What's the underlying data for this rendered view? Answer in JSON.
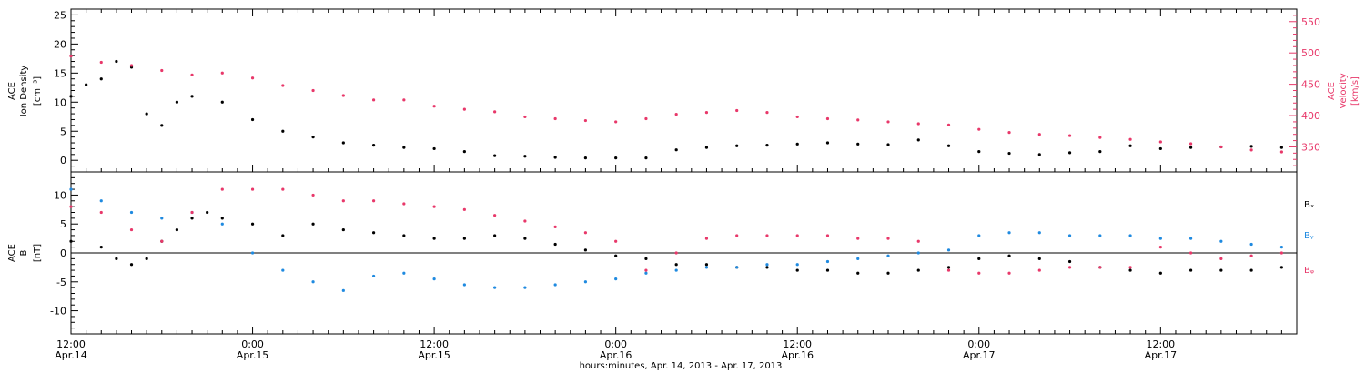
{
  "chart_data": [
    {
      "type": "scatter",
      "panel": "top",
      "ylabel_left": [
        "ACE",
        "Ion Density",
        "[cm⁻³]"
      ],
      "ylabel_right": [
        "ACE",
        "Velocity",
        "[km/s]"
      ],
      "xlim": [
        0,
        81
      ],
      "ylim_left": [
        -2,
        26
      ],
      "ylim_right": [
        310,
        570
      ],
      "yticks_left": [
        "0",
        "5",
        "10",
        "15",
        "20",
        "25"
      ],
      "yticks_right": [
        "350",
        "400",
        "450",
        "500",
        "550"
      ],
      "series": [
        {
          "axis": "left",
          "color": "#000000",
          "x": [
            0,
            1,
            2,
            3,
            4,
            5,
            6,
            7,
            8,
            10,
            12,
            14,
            16,
            18,
            20,
            22,
            24,
            26,
            28,
            30,
            32,
            34,
            36,
            38,
            40,
            42,
            44,
            46,
            48,
            50,
            52,
            54,
            56,
            58,
            60,
            62,
            64,
            66,
            68,
            70,
            72,
            74,
            76,
            78,
            80
          ],
          "y": [
            11,
            13,
            14,
            17,
            16,
            8,
            6,
            10,
            11,
            10,
            7,
            5,
            4,
            3,
            2.6,
            2.2,
            2,
            1.5,
            0.8,
            0.7,
            0.5,
            0.4,
            0.4,
            0.4,
            1.8,
            2.2,
            2.5,
            2.6,
            2.8,
            3,
            2.8,
            2.7,
            3.5,
            2.5,
            1.5,
            1.2,
            1.0,
            1.3,
            1.5,
            2.5,
            2,
            2.2,
            2.3,
            2.4,
            2.2
          ]
        },
        {
          "axis": "right",
          "color": "#e8386a",
          "x": [
            0,
            2,
            4,
            6,
            8,
            10,
            12,
            14,
            16,
            18,
            20,
            22,
            24,
            26,
            28,
            30,
            32,
            34,
            36,
            38,
            40,
            42,
            44,
            46,
            48,
            50,
            52,
            54,
            56,
            58,
            60,
            62,
            64,
            66,
            68,
            70,
            72,
            74,
            76,
            78,
            80
          ],
          "y": [
            495,
            485,
            480,
            472,
            465,
            468,
            460,
            448,
            440,
            432,
            425,
            425,
            415,
            410,
            406,
            398,
            395,
            392,
            390,
            395,
            402,
            405,
            408,
            405,
            398,
            395,
            393,
            390,
            387,
            385,
            378,
            373,
            370,
            368,
            365,
            362,
            358,
            355,
            350,
            345,
            342
          ]
        }
      ]
    },
    {
      "type": "scatter",
      "panel": "bottom",
      "ylabel_left": [
        "ACE",
        "B",
        "[nT]"
      ],
      "xlim": [
        0,
        81
      ],
      "ylim": [
        -14,
        14
      ],
      "yticks": [
        "-10",
        "-5",
        "0",
        "5",
        "10"
      ],
      "legend": [
        {
          "name": "Bₓ",
          "color": "#000000"
        },
        {
          "name": "Bᵧ",
          "color": "#1f8ae0"
        },
        {
          "name": "Bᵩ",
          "color": "#e8386a"
        }
      ],
      "series": [
        {
          "name": "Bₓ",
          "color": "#000000",
          "x": [
            0,
            2,
            3,
            4,
            5,
            6,
            7,
            8,
            9,
            10,
            12,
            14,
            16,
            18,
            20,
            22,
            24,
            26,
            28,
            30,
            32,
            34,
            36,
            38,
            40,
            42,
            44,
            46,
            48,
            50,
            52,
            54,
            56,
            58,
            60,
            62,
            64,
            66,
            68,
            70,
            72,
            74,
            76,
            78,
            80
          ],
          "y": [
            2,
            1,
            -1,
            -2,
            -1,
            2,
            4,
            6,
            7,
            6,
            5,
            3,
            5,
            4,
            3.5,
            3,
            2.5,
            2.5,
            3,
            2.5,
            1.5,
            0.5,
            -0.5,
            -1,
            -2,
            -2,
            -2.5,
            -2.5,
            -3,
            -3,
            -3.5,
            -3.5,
            -3,
            -2.5,
            -1,
            -0.5,
            -1,
            -1.5,
            -2.5,
            -3,
            -3.5,
            -3,
            -3,
            -3,
            -2.5
          ]
        },
        {
          "name": "Bᵧ",
          "color": "#1f8ae0",
          "x": [
            0,
            2,
            4,
            6,
            8,
            10,
            12,
            14,
            16,
            18,
            20,
            22,
            24,
            26,
            28,
            30,
            32,
            34,
            36,
            38,
            40,
            42,
            44,
            46,
            48,
            50,
            52,
            54,
            56,
            58,
            60,
            62,
            64,
            66,
            68,
            70,
            72,
            74,
            76,
            78,
            80
          ],
          "y": [
            11,
            9,
            7,
            6,
            7,
            5,
            0,
            -3,
            -5,
            -6.5,
            -4,
            -3.5,
            -4.5,
            -5.5,
            -6,
            -6,
            -5.5,
            -5,
            -4.5,
            -3.5,
            -3,
            -2.5,
            -2.5,
            -2,
            -2,
            -1.5,
            -1,
            -0.5,
            0,
            0.5,
            3,
            3.5,
            3.5,
            3,
            3,
            3,
            2.5,
            2.5,
            2,
            1.5,
            1
          ]
        },
        {
          "name": "Bᵩ",
          "color": "#e8386a",
          "x": [
            0,
            2,
            4,
            6,
            8,
            10,
            12,
            14,
            16,
            18,
            20,
            22,
            24,
            26,
            28,
            30,
            32,
            34,
            36,
            38,
            40,
            42,
            44,
            46,
            48,
            50,
            52,
            54,
            56,
            58,
            60,
            62,
            64,
            66,
            68,
            70,
            72,
            74,
            76,
            78,
            80
          ],
          "y": [
            8,
            7,
            4,
            2,
            7,
            11,
            11,
            11,
            10,
            9,
            9,
            8.5,
            8,
            7.5,
            6.5,
            5.5,
            4.5,
            3.5,
            2,
            -3,
            0,
            2.5,
            3,
            3,
            3,
            3,
            2.5,
            2.5,
            2,
            -3,
            -3.5,
            -3.5,
            -3,
            -2.5,
            -2.5,
            -2.5,
            1,
            0,
            -1,
            -0.5,
            0
          ]
        }
      ]
    }
  ],
  "x_axis": {
    "ticks": [
      {
        "x": 0,
        "time": "12:00",
        "date": "Apr.14"
      },
      {
        "x": 12,
        "time": "0:00",
        "date": "Apr.15"
      },
      {
        "x": 24,
        "time": "12:00",
        "date": "Apr.15"
      },
      {
        "x": 36,
        "time": "0:00",
        "date": "Apr.16"
      },
      {
        "x": 48,
        "time": "12:00",
        "date": "Apr.16"
      },
      {
        "x": 60,
        "time": "0:00",
        "date": "Apr.17"
      },
      {
        "x": 72,
        "time": "12:00",
        "date": "Apr.17"
      }
    ],
    "label": "hours:minutes, Apr. 14, 2013 - Apr. 17, 2013"
  }
}
